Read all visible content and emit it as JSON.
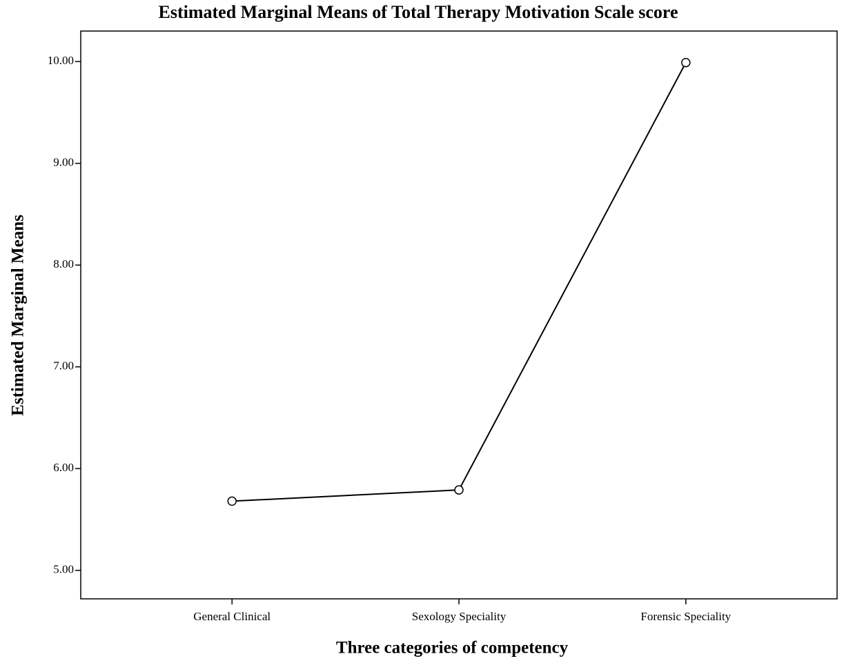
{
  "chart_data": {
    "type": "line",
    "title": "Estimated Marginal Means of Total Therapy Motivation Scale score",
    "xlabel": "Three categories of competency",
    "ylabel": "Estimated Marginal Means",
    "categories": [
      "General Clinical",
      "Sexology Speciality",
      "Forensic Speciality"
    ],
    "values": [
      5.68,
      5.79,
      9.99
    ],
    "color": "#000000",
    "ylim": [
      4.72,
      10.3
    ],
    "yticks": [
      {
        "value": 5,
        "label": "5.00"
      },
      {
        "value": 6,
        "label": "6.00"
      },
      {
        "value": 7,
        "label": "7.00"
      },
      {
        "value": 8,
        "label": "8.00"
      },
      {
        "value": 9,
        "label": "9.00"
      },
      {
        "value": 10,
        "label": "10.00"
      }
    ],
    "grid": false
  }
}
